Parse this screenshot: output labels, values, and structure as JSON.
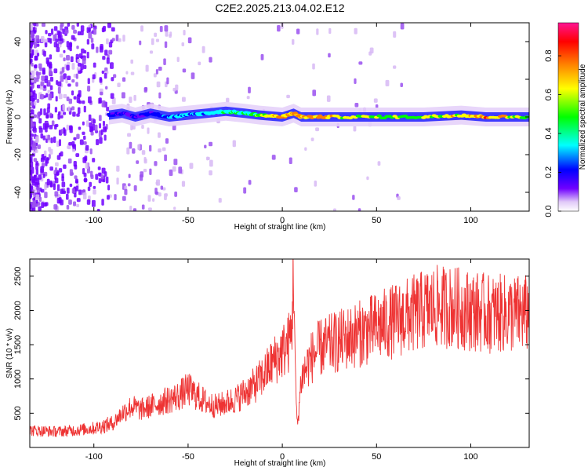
{
  "title": "C2E2.2025.213.04.02.E12",
  "chart_data": [
    {
      "type": "heatmap",
      "xlabel": "Height of straight line (km)",
      "ylabel": "Frequency (Hz)",
      "xlim": [
        -134,
        131
      ],
      "ylim": [
        -50,
        50
      ],
      "xticks": [
        -100,
        -50,
        0,
        50,
        100
      ],
      "yticks": [
        -40,
        -20,
        0,
        20,
        40
      ],
      "colorbar": {
        "label": "Normalized spectral amplitude",
        "range": [
          0,
          0.97
        ],
        "ticks": [
          0.0,
          0.2,
          0.4,
          0.6,
          0.8
        ],
        "colors": [
          "#e0c8f8",
          "#7000ff",
          "#0000ff",
          "#00ffff",
          "#00ff00",
          "#ffff00",
          "#ff8000",
          "#ff0000",
          "#ff1493"
        ]
      },
      "ridge": [
        {
          "x": -92,
          "y": 1,
          "a": 0.35
        },
        {
          "x": -85,
          "y": 2,
          "a": 0.3
        },
        {
          "x": -78,
          "y": 0,
          "a": 0.3
        },
        {
          "x": -70,
          "y": 2,
          "a": 0.35
        },
        {
          "x": -60,
          "y": 0,
          "a": 0.4
        },
        {
          "x": -50,
          "y": 1,
          "a": 0.45
        },
        {
          "x": -40,
          "y": 2,
          "a": 0.5
        },
        {
          "x": -30,
          "y": 3,
          "a": 0.55
        },
        {
          "x": -20,
          "y": 2,
          "a": 0.6
        },
        {
          "x": -12,
          "y": 1,
          "a": 0.7
        },
        {
          "x": 0,
          "y": 0,
          "a": 0.85
        },
        {
          "x": 6,
          "y": 2,
          "a": 0.8
        },
        {
          "x": 10,
          "y": 0,
          "a": 0.85
        },
        {
          "x": 25,
          "y": 0,
          "a": 0.8
        },
        {
          "x": 50,
          "y": 0,
          "a": 0.7
        },
        {
          "x": 75,
          "y": 0,
          "a": 0.7
        },
        {
          "x": 95,
          "y": 1,
          "a": 0.8
        },
        {
          "x": 108,
          "y": 0,
          "a": 0.85
        },
        {
          "x": 131,
          "y": 0,
          "a": 0.7
        }
      ]
    },
    {
      "type": "line",
      "xlabel": "Height of straight line (km)",
      "ylabel": "SNR (10 * v/v)",
      "xlim": [
        -134,
        131
      ],
      "ylim": [
        0,
        2750
      ],
      "xticks": [
        -100,
        -50,
        0,
        50,
        100
      ],
      "yticks": [
        500,
        1000,
        1500,
        2000,
        2500
      ],
      "color": "#ee3333",
      "series": [
        {
          "x": [
            -134,
            -120,
            -110,
            -100,
            -90,
            -85,
            -80,
            -75,
            -70,
            -65,
            -60,
            -55,
            -50,
            -45,
            -40,
            -35,
            -30,
            -25,
            -20,
            -15,
            -10,
            -5,
            0,
            3,
            5,
            6,
            7,
            8,
            10,
            15,
            20,
            30,
            40,
            50,
            60,
            70,
            80,
            90,
            100,
            110,
            120,
            131
          ],
          "y": [
            250,
            230,
            250,
            280,
            350,
            500,
            600,
            550,
            600,
            650,
            700,
            750,
            850,
            750,
            650,
            600,
            650,
            700,
            800,
            900,
            1050,
            1250,
            1400,
            1500,
            1700,
            2700,
            900,
            300,
            1000,
            1300,
            1450,
            1550,
            1650,
            1750,
            1850,
            1950,
            2050,
            2050,
            2000,
            1950,
            1950,
            1950
          ]
        }
      ]
    }
  ]
}
